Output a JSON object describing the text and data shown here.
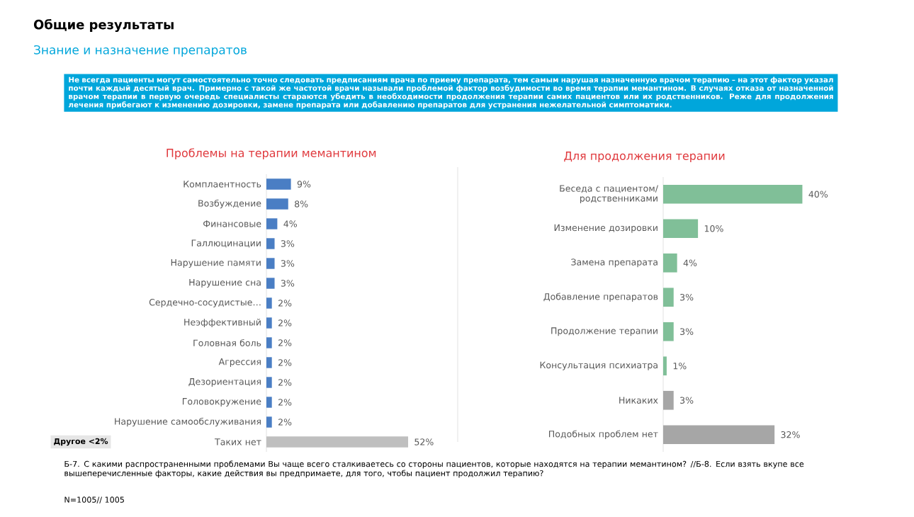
{
  "chart_data": [
    {
      "type": "bar",
      "orientation": "horizontal",
      "title": "Проблемы на терапии мемантином",
      "categories": [
        "Комплаентность",
        "Возбуждение",
        "Финансовые",
        "Галлюцинации",
        "Нарушение памяти",
        "Нарушение сна",
        "Сердечно-сосудистые…",
        "Неэффективный",
        "Головная боль",
        "Агрессия",
        "Дезориентация",
        "Головокружение",
        "Нарушение самообслуживания",
        "Таких нет"
      ],
      "values": [
        9,
        8,
        4,
        3,
        3,
        3,
        2,
        2,
        2,
        2,
        2,
        2,
        2,
        52
      ],
      "value_labels": [
        "9%",
        "8%",
        "4%",
        "3%",
        "3%",
        "3%",
        "2%",
        "2%",
        "2%",
        "2%",
        "2%",
        "2%",
        "2%",
        "52%"
      ],
      "colors": [
        "#4a7ec4",
        "#4a7ec4",
        "#4a7ec4",
        "#4a7ec4",
        "#4a7ec4",
        "#4a7ec4",
        "#4a7ec4",
        "#4a7ec4",
        "#4a7ec4",
        "#4a7ec4",
        "#4a7ec4",
        "#4a7ec4",
        "#4a7ec4",
        "#bfbfbf"
      ],
      "annotations": [
        "Общие результаты",
        "Знание и назначение препаратов",
        "Не всегда пациенты могут самостоятельно точно следовать предписаниям врача по приему препарата, тем самым нарушая назначенную врачом терапию – на этот фактор указал почти каждый десятый врач. Примерно с такой же частотой врачи называли проблемой фактор возбудимости во время терапии мемантином. В случаях отказа от назначенной врачом терапии в первую очередь специалисты стараются убедить в необходимости продолжения терапии самих пациентов или их родственников. Реже для продолжения лечения прибегают к изменению дозировки, замене препарата или добавлению препаратов для устранения нежелательной симптоматики.",
        "Другое <2%",
        "Б-7. С какими распространенными проблемами Вы чаще всего сталкиваетесь со стороны пациентов, которые находятся на терапии мемантином? //Б-8. Если взять вкупе все вышеперечисленные факторы, какие действия вы предпримаете, для того, чтобы пациент продолжил терапию?",
        "N=1005// 1005"
      ]
    },
    {
      "type": "bar",
      "orientation": "horizontal",
      "title": "Для продолжения терапии",
      "categories": [
        "Беседа с пациентом/ родственниками",
        "Изменение дозировки",
        "Замена препарата",
        "Добавление препаратов",
        "Продолжение терапии",
        "Консультация психиатра",
        "Никаких",
        "Подобных проблем нет"
      ],
      "values": [
        40,
        10,
        4,
        3,
        3,
        1,
        3,
        32
      ],
      "value_labels": [
        "40%",
        "10%",
        "4%",
        "3%",
        "3%",
        "1%",
        "3%",
        "32%"
      ],
      "colors": [
        "#80bf98",
        "#80bf98",
        "#80bf98",
        "#80bf98",
        "#80bf98",
        "#80bf98",
        "#a6a6a6",
        "#a6a6a6"
      ]
    }
  ]
}
